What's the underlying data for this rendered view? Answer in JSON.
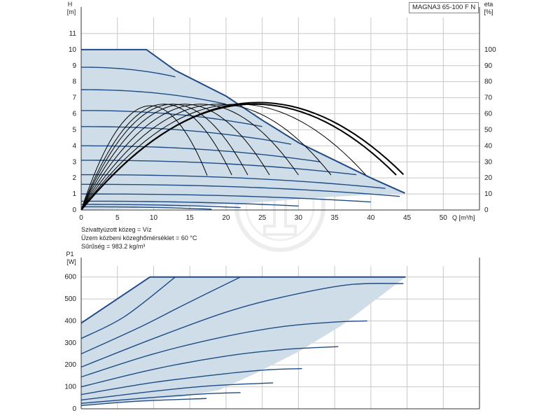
{
  "title": "MAGNA3 65-100 F N",
  "colors": {
    "envelope_fill": "#cfdde8",
    "curve": "#1f4c86",
    "efficiency": "#000000",
    "grid": "#c8c8c8",
    "axis": "#333333",
    "watermark": "#e6e6e6"
  },
  "medium_info": {
    "line1": "Szivattyúzott közeg = Víz",
    "line2": "Üzem közbeni közeghőmérséklet = 60 °C",
    "line3": "Sűrűség = 983.2 kg/m³"
  },
  "chart_data": [
    {
      "type": "line",
      "name": "head",
      "y_left_label": [
        "H",
        "[m]"
      ],
      "y_right_label": [
        "eta",
        "[%]"
      ],
      "x_unit_label": "Q [m³/h]",
      "xlim": [
        0,
        55
      ],
      "ylim": [
        0,
        12
      ],
      "y2lim": [
        0,
        120
      ],
      "x_ticks": [
        0,
        5,
        10,
        15,
        20,
        25,
        30,
        35,
        40,
        45,
        50
      ],
      "y_ticks": [
        0,
        1,
        2,
        3,
        4,
        5,
        6,
        7,
        8,
        9,
        10,
        11
      ],
      "y2_ticks": [
        0,
        10,
        20,
        30,
        40,
        50,
        60,
        70,
        80,
        90,
        100
      ],
      "grid": true,
      "envelope": [
        [
          0,
          10
        ],
        [
          9,
          10
        ],
        [
          13,
          8.7
        ],
        [
          20,
          7.1
        ],
        [
          25,
          5.6
        ],
        [
          30,
          4.2
        ],
        [
          35,
          3.1
        ],
        [
          40,
          2.0
        ],
        [
          44.7,
          1.05
        ],
        [
          40,
          0.95
        ],
        [
          34,
          0.8
        ],
        [
          28,
          0.6
        ],
        [
          22,
          0.4
        ],
        [
          16,
          0.25
        ],
        [
          10,
          0.12
        ],
        [
          0,
          0
        ]
      ],
      "head_curves": [
        {
          "qmax": 9,
          "h0": 10,
          "k": 0,
          "drop": 0
        },
        {
          "qmax": 13,
          "h0": 8.9,
          "k": 1.2,
          "drop": 0.6
        },
        {
          "qmax": 20,
          "h0": 7.5,
          "k": 1.9,
          "drop": 0.9
        },
        {
          "qmax": 25,
          "h0": 6.2,
          "k": 2.2,
          "drop": 1.0
        },
        {
          "qmax": 29,
          "h0": 5.2,
          "k": 2.4,
          "drop": 1.1
        },
        {
          "qmax": 33,
          "h0": 4.0,
          "k": 2.3,
          "drop": 1.0
        },
        {
          "qmax": 38,
          "h0": 3.1,
          "k": 2.1,
          "drop": 0.9
        },
        {
          "qmax": 42,
          "h0": 2.2,
          "k": 1.9,
          "drop": 0.85
        },
        {
          "qmax": 44,
          "h0": 1.6,
          "k": 1.5,
          "drop": 0.75
        },
        {
          "qmax": 40,
          "h0": 1.0,
          "k": 0.8,
          "drop": 0.5
        },
        {
          "qmax": 30,
          "h0": 0.55,
          "k": 0.45,
          "drop": 0.3
        },
        {
          "qmax": 22,
          "h0": 0.35,
          "k": 0.3,
          "drop": 0.2
        },
        {
          "qmax": 18,
          "h0": 0.2,
          "k": 0.2,
          "drop": 0.15
        }
      ],
      "max_curve": [
        [
          0,
          10
        ],
        [
          9,
          10
        ],
        [
          13,
          8.7
        ],
        [
          20,
          7.1
        ],
        [
          25,
          5.6
        ],
        [
          30,
          4.2
        ],
        [
          35,
          3.1
        ],
        [
          40,
          2.0
        ],
        [
          44.7,
          1.05
        ]
      ],
      "efficiency_curves": [
        {
          "qmax": 17.4,
          "eta_peak": 65
        },
        {
          "qmax": 20.8,
          "eta_peak": 66
        },
        {
          "qmax": 23.0,
          "eta_peak": 66
        },
        {
          "qmax": 26.0,
          "eta_peak": 66
        },
        {
          "qmax": 30.0,
          "eta_peak": 66
        },
        {
          "qmax": 34.5,
          "eta_peak": 66
        },
        {
          "qmax": 39.3,
          "eta_peak": 66
        },
        {
          "qmax": 43.5,
          "eta_peak": 66
        },
        {
          "qmax": 44.5,
          "eta_peak": 67
        }
      ]
    },
    {
      "type": "line",
      "name": "power",
      "y_label": [
        "P1",
        "[W]"
      ],
      "xlim": [
        0,
        55
      ],
      "ylim": [
        0,
        650
      ],
      "y_ticks": [
        0,
        100,
        200,
        300,
        400,
        500,
        600
      ],
      "x_ticks": [
        0,
        5,
        10,
        15,
        20,
        25,
        30,
        35,
        40,
        45,
        50
      ],
      "grid": true,
      "envelope": [
        [
          0,
          390
        ],
        [
          9.5,
          600
        ],
        [
          44.8,
          600
        ],
        [
          42,
          530
        ],
        [
          36,
          380
        ],
        [
          30,
          260
        ],
        [
          24,
          160
        ],
        [
          19,
          85
        ],
        [
          14,
          55
        ],
        [
          8,
          35
        ],
        [
          0,
          15
        ]
      ],
      "max_curve": [
        [
          0,
          390
        ],
        [
          9.5,
          600
        ],
        [
          44.8,
          600
        ]
      ],
      "power_curves": [
        {
          "pts": [
            [
              0,
              320
            ],
            [
              6,
              420
            ],
            [
              13,
              600
            ]
          ]
        },
        {
          "pts": [
            [
              0,
              250
            ],
            [
              8,
              370
            ],
            [
              14,
              470
            ],
            [
              22,
              600
            ]
          ]
        },
        {
          "pts": [
            [
              0,
              190
            ],
            [
              10,
              320
            ],
            [
              20,
              440
            ],
            [
              28,
              510
            ],
            [
              37,
              565
            ],
            [
              44.5,
              570
            ]
          ]
        },
        {
          "pts": [
            [
              0,
              145
            ],
            [
              10,
              250
            ],
            [
              20,
              330
            ],
            [
              28,
              375
            ],
            [
              35,
              395
            ],
            [
              39.5,
              400
            ]
          ]
        },
        {
          "pts": [
            [
              0,
              100
            ],
            [
              10,
              180
            ],
            [
              20,
              240
            ],
            [
              28,
              270
            ],
            [
              35.5,
              283
            ]
          ]
        },
        {
          "pts": [
            [
              0,
              65
            ],
            [
              10,
              120
            ],
            [
              20,
              160
            ],
            [
              26,
              178
            ],
            [
              30.5,
              183
            ]
          ]
        },
        {
          "pts": [
            [
              0,
              40
            ],
            [
              10,
              80
            ],
            [
              18,
              105
            ],
            [
              26.5,
              118
            ]
          ]
        },
        {
          "pts": [
            [
              0,
              25
            ],
            [
              10,
              52
            ],
            [
              17,
              68
            ],
            [
              22,
              74
            ]
          ]
        },
        {
          "pts": [
            [
              0,
              15
            ],
            [
              8,
              35
            ],
            [
              17.3,
              47
            ]
          ]
        }
      ]
    }
  ]
}
